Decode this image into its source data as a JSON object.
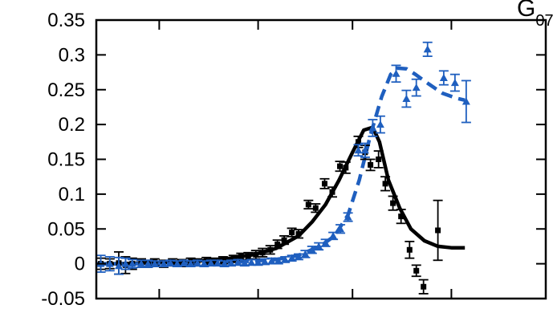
{
  "chart_data": {
    "type": "scatter",
    "corner_label": {
      "main": "G",
      "sub": "07"
    },
    "xlim": [
      0,
      1
    ],
    "ylim": [
      -0.05,
      0.35
    ],
    "yticks": [
      -0.05,
      0,
      0.05,
      0.1,
      0.15,
      0.2,
      0.25,
      0.3,
      0.35
    ],
    "ytick_labels": [
      "-0.05",
      "0",
      "0.05",
      "0.1",
      "0.15",
      "0.2",
      "0.25",
      "0.3",
      "0.35"
    ],
    "xticks": [
      0.14,
      0.36,
      0.57,
      0.79
    ],
    "colors": {
      "black": "#000000",
      "blue": "#1f5fbf"
    },
    "series": [
      {
        "marker": "square",
        "color": "#000000",
        "points": [
          {
            "x": 0.01,
            "y": 0.0,
            "err": 0.008
          },
          {
            "x": 0.03,
            "y": 0.0,
            "err": 0.007
          },
          {
            "x": 0.05,
            "y": 0.001,
            "err": 0.016
          },
          {
            "x": 0.065,
            "y": -0.002,
            "err": 0.012
          },
          {
            "x": 0.08,
            "y": 0.0,
            "err": 0.008
          },
          {
            "x": 0.1,
            "y": 0.001,
            "err": 0.006
          },
          {
            "x": 0.115,
            "y": 0.0,
            "err": 0.005
          },
          {
            "x": 0.13,
            "y": 0.002,
            "err": 0.005
          },
          {
            "x": 0.15,
            "y": 0.0,
            "err": 0.005
          },
          {
            "x": 0.17,
            "y": 0.002,
            "err": 0.005
          },
          {
            "x": 0.19,
            "y": 0.001,
            "err": 0.005
          },
          {
            "x": 0.21,
            "y": 0.003,
            "err": 0.005
          },
          {
            "x": 0.225,
            "y": 0.002,
            "err": 0.005
          },
          {
            "x": 0.245,
            "y": 0.004,
            "err": 0.005
          },
          {
            "x": 0.262,
            "y": 0.003,
            "err": 0.005
          },
          {
            "x": 0.282,
            "y": 0.005,
            "err": 0.005
          },
          {
            "x": 0.305,
            "y": 0.007,
            "err": 0.005
          },
          {
            "x": 0.322,
            "y": 0.01,
            "err": 0.005
          },
          {
            "x": 0.338,
            "y": 0.011,
            "err": 0.005
          },
          {
            "x": 0.355,
            "y": 0.013,
            "err": 0.006
          },
          {
            "x": 0.37,
            "y": 0.016,
            "err": 0.006
          },
          {
            "x": 0.387,
            "y": 0.02,
            "err": 0.006
          },
          {
            "x": 0.403,
            "y": 0.028,
            "err": 0.006
          },
          {
            "x": 0.418,
            "y": 0.034,
            "err": 0.006
          },
          {
            "x": 0.435,
            "y": 0.045,
            "err": 0.006
          },
          {
            "x": 0.45,
            "y": 0.043,
            "err": 0.006
          },
          {
            "x": 0.472,
            "y": 0.085,
            "err": 0.006
          },
          {
            "x": 0.488,
            "y": 0.08,
            "err": 0.006
          },
          {
            "x": 0.508,
            "y": 0.115,
            "err": 0.007
          },
          {
            "x": 0.525,
            "y": 0.103,
            "err": 0.007
          },
          {
            "x": 0.542,
            "y": 0.14,
            "err": 0.007
          },
          {
            "x": 0.555,
            "y": 0.138,
            "err": 0.008
          },
          {
            "x": 0.583,
            "y": 0.175,
            "err": 0.008
          },
          {
            "x": 0.598,
            "y": 0.16,
            "err": 0.01
          },
          {
            "x": 0.61,
            "y": 0.142,
            "err": 0.008
          },
          {
            "x": 0.628,
            "y": 0.15,
            "err": 0.012
          },
          {
            "x": 0.643,
            "y": 0.115,
            "err": 0.01
          },
          {
            "x": 0.66,
            "y": 0.087,
            "err": 0.01
          },
          {
            "x": 0.678,
            "y": 0.068,
            "err": 0.01
          },
          {
            "x": 0.697,
            "y": 0.02,
            "err": 0.012
          },
          {
            "x": 0.712,
            "y": -0.01,
            "err": 0.008
          },
          {
            "x": 0.728,
            "y": -0.033,
            "err": 0.01
          },
          {
            "x": 0.76,
            "y": 0.048,
            "err": 0.043
          }
        ]
      },
      {
        "marker": "triangle",
        "color": "#1f5fbf",
        "points": [
          {
            "x": 0.01,
            "y": 0.0,
            "err": 0.012
          },
          {
            "x": 0.03,
            "y": 0.0,
            "err": 0.01
          },
          {
            "x": 0.05,
            "y": -0.003,
            "err": 0.012
          },
          {
            "x": 0.065,
            "y": 0.0,
            "err": 0.008
          },
          {
            "x": 0.08,
            "y": 0.0,
            "err": 0.006
          },
          {
            "x": 0.1,
            "y": 0.0,
            "err": 0.005
          },
          {
            "x": 0.115,
            "y": 0.0,
            "err": 0.005
          },
          {
            "x": 0.13,
            "y": 0.0,
            "err": 0.004
          },
          {
            "x": 0.15,
            "y": 0.0,
            "err": 0.004
          },
          {
            "x": 0.165,
            "y": 0.001,
            "err": 0.004
          },
          {
            "x": 0.18,
            "y": 0.0,
            "err": 0.004
          },
          {
            "x": 0.195,
            "y": 0.001,
            "err": 0.004
          },
          {
            "x": 0.21,
            "y": 0.0,
            "err": 0.004
          },
          {
            "x": 0.225,
            "y": 0.001,
            "err": 0.004
          },
          {
            "x": 0.24,
            "y": 0.0,
            "err": 0.004
          },
          {
            "x": 0.255,
            "y": 0.001,
            "err": 0.004
          },
          {
            "x": 0.27,
            "y": 0.001,
            "err": 0.004
          },
          {
            "x": 0.285,
            "y": 0.0,
            "err": 0.004
          },
          {
            "x": 0.3,
            "y": 0.001,
            "err": 0.004
          },
          {
            "x": 0.315,
            "y": 0.002,
            "err": 0.004
          },
          {
            "x": 0.33,
            "y": 0.001,
            "err": 0.004
          },
          {
            "x": 0.345,
            "y": 0.002,
            "err": 0.004
          },
          {
            "x": 0.36,
            "y": 0.002,
            "err": 0.004
          },
          {
            "x": 0.375,
            "y": 0.003,
            "err": 0.004
          },
          {
            "x": 0.39,
            "y": 0.004,
            "err": 0.004
          },
          {
            "x": 0.405,
            "y": 0.004,
            "err": 0.004
          },
          {
            "x": 0.42,
            "y": 0.006,
            "err": 0.004
          },
          {
            "x": 0.435,
            "y": 0.008,
            "err": 0.004
          },
          {
            "x": 0.45,
            "y": 0.01,
            "err": 0.004
          },
          {
            "x": 0.465,
            "y": 0.014,
            "err": 0.005
          },
          {
            "x": 0.48,
            "y": 0.02,
            "err": 0.005
          },
          {
            "x": 0.495,
            "y": 0.025,
            "err": 0.005
          },
          {
            "x": 0.51,
            "y": 0.03,
            "err": 0.005
          },
          {
            "x": 0.527,
            "y": 0.04,
            "err": 0.005
          },
          {
            "x": 0.543,
            "y": 0.05,
            "err": 0.006
          },
          {
            "x": 0.56,
            "y": 0.067,
            "err": 0.006
          },
          {
            "x": 0.583,
            "y": 0.163,
            "err": 0.008
          },
          {
            "x": 0.598,
            "y": 0.163,
            "err": 0.01
          },
          {
            "x": 0.615,
            "y": 0.195,
            "err": 0.012
          },
          {
            "x": 0.632,
            "y": 0.2,
            "err": 0.012
          },
          {
            "x": 0.667,
            "y": 0.273,
            "err": 0.012
          },
          {
            "x": 0.69,
            "y": 0.237,
            "err": 0.012
          },
          {
            "x": 0.712,
            "y": 0.253,
            "err": 0.012
          },
          {
            "x": 0.737,
            "y": 0.308,
            "err": 0.01
          },
          {
            "x": 0.773,
            "y": 0.267,
            "err": 0.01
          },
          {
            "x": 0.798,
            "y": 0.26,
            "err": 0.012
          },
          {
            "x": 0.823,
            "y": 0.233,
            "err": 0.03
          }
        ]
      }
    ],
    "curves": [
      {
        "style": "solid",
        "color": "#000000",
        "points": [
          [
            0.0,
            0.0
          ],
          [
            0.05,
            0.0
          ],
          [
            0.1,
            0.001
          ],
          [
            0.15,
            0.002
          ],
          [
            0.2,
            0.003
          ],
          [
            0.25,
            0.005
          ],
          [
            0.3,
            0.008
          ],
          [
            0.35,
            0.013
          ],
          [
            0.4,
            0.022
          ],
          [
            0.45,
            0.04
          ],
          [
            0.48,
            0.06
          ],
          [
            0.51,
            0.085
          ],
          [
            0.54,
            0.12
          ],
          [
            0.57,
            0.16
          ],
          [
            0.595,
            0.192
          ],
          [
            0.615,
            0.196
          ],
          [
            0.63,
            0.175
          ],
          [
            0.65,
            0.12
          ],
          [
            0.675,
            0.08
          ],
          [
            0.7,
            0.05
          ],
          [
            0.73,
            0.033
          ],
          [
            0.76,
            0.025
          ],
          [
            0.79,
            0.023
          ],
          [
            0.82,
            0.023
          ]
        ]
      },
      {
        "style": "dashed",
        "color": "#1f5fbf",
        "points": [
          [
            0.0,
            0.0
          ],
          [
            0.1,
            0.0
          ],
          [
            0.2,
            0.0
          ],
          [
            0.3,
            0.002
          ],
          [
            0.4,
            0.006
          ],
          [
            0.45,
            0.012
          ],
          [
            0.5,
            0.026
          ],
          [
            0.53,
            0.04
          ],
          [
            0.56,
            0.07
          ],
          [
            0.585,
            0.12
          ],
          [
            0.61,
            0.185
          ],
          [
            0.635,
            0.24
          ],
          [
            0.655,
            0.272
          ],
          [
            0.67,
            0.281
          ],
          [
            0.69,
            0.28
          ],
          [
            0.71,
            0.272
          ],
          [
            0.74,
            0.258
          ],
          [
            0.77,
            0.245
          ],
          [
            0.8,
            0.238
          ],
          [
            0.82,
            0.235
          ]
        ]
      }
    ]
  }
}
